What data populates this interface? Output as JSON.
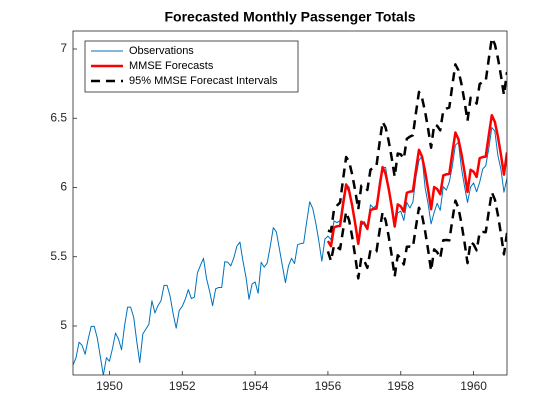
{
  "chart_data": {
    "type": "line",
    "title": "Forecasted  Monthly  Passenger  Totals",
    "x": [
      1949,
      1949.083,
      1949.167,
      1949.25,
      1949.333,
      1949.417,
      1949.5,
      1949.583,
      1949.667,
      1949.75,
      1949.833,
      1949.917,
      1950,
      1950.083,
      1950.167,
      1950.25,
      1950.333,
      1950.417,
      1950.5,
      1950.583,
      1950.667,
      1950.75,
      1950.833,
      1950.917,
      1951,
      1951.083,
      1951.167,
      1951.25,
      1951.333,
      1951.417,
      1951.5,
      1951.583,
      1951.667,
      1951.75,
      1951.833,
      1951.917,
      1952,
      1952.083,
      1952.167,
      1952.25,
      1952.333,
      1952.417,
      1952.5,
      1952.583,
      1952.667,
      1952.75,
      1952.833,
      1952.917,
      1953,
      1953.083,
      1953.167,
      1953.25,
      1953.333,
      1953.417,
      1953.5,
      1953.583,
      1953.667,
      1953.75,
      1953.833,
      1953.917,
      1954,
      1954.083,
      1954.167,
      1954.25,
      1954.333,
      1954.417,
      1954.5,
      1954.583,
      1954.667,
      1954.75,
      1954.833,
      1954.917,
      1955,
      1955.083,
      1955.167,
      1955.25,
      1955.333,
      1955.417,
      1955.5,
      1955.583,
      1955.667,
      1955.75,
      1955.833,
      1955.917,
      1956,
      1956.083,
      1956.167,
      1956.25,
      1956.333,
      1956.417,
      1956.5,
      1956.583,
      1956.667,
      1956.75,
      1956.833,
      1956.917,
      1957,
      1957.083,
      1957.167,
      1957.25,
      1957.333,
      1957.417,
      1957.5,
      1957.583,
      1957.667,
      1957.75,
      1957.833,
      1957.917,
      1958,
      1958.083,
      1958.167,
      1958.25,
      1958.333,
      1958.417,
      1958.5,
      1958.583,
      1958.667,
      1958.75,
      1958.833,
      1958.917,
      1959,
      1959.083,
      1959.167,
      1959.25,
      1959.333,
      1959.417,
      1959.5,
      1959.583,
      1959.667,
      1959.75,
      1959.833,
      1959.917,
      1960,
      1960.083,
      1960.167,
      1960.25,
      1960.333,
      1960.417,
      1960.5,
      1960.583,
      1960.667,
      1960.75,
      1960.833,
      1960.917
    ],
    "series": [
      {
        "name": "Observations",
        "color": "#0072bd",
        "width": 1,
        "dashed": false,
        "values": [
          4.718,
          4.771,
          4.883,
          4.86,
          4.796,
          4.905,
          4.997,
          4.997,
          4.913,
          4.779,
          4.644,
          4.771,
          4.745,
          4.836,
          4.949,
          4.905,
          4.828,
          5.004,
          5.136,
          5.136,
          5.063,
          4.89,
          4.736,
          4.942,
          4.977,
          5.011,
          5.182,
          5.094,
          5.147,
          5.182,
          5.293,
          5.293,
          5.215,
          5.088,
          4.984,
          5.112,
          5.142,
          5.193,
          5.263,
          5.198,
          5.209,
          5.384,
          5.438,
          5.489,
          5.342,
          5.252,
          5.147,
          5.268,
          5.278,
          5.278,
          5.464,
          5.46,
          5.434,
          5.493,
          5.576,
          5.606,
          5.468,
          5.352,
          5.193,
          5.303,
          5.318,
          5.236,
          5.46,
          5.425,
          5.455,
          5.576,
          5.71,
          5.68,
          5.557,
          5.434,
          5.313,
          5.434,
          5.489,
          5.451,
          5.587,
          5.595,
          5.598,
          5.753,
          5.897,
          5.849,
          5.743,
          5.613,
          5.468,
          5.628,
          5.649,
          5.624,
          5.759,
          5.746,
          5.762,
          5.924,
          6.023,
          6.004,
          5.872,
          5.724,
          5.602,
          5.724,
          5.753,
          5.707,
          5.875,
          5.852,
          5.872,
          6.045,
          6.142,
          6.146,
          6.001,
          5.849,
          5.72,
          5.817,
          5.829,
          5.762,
          5.892,
          5.852,
          5.894,
          6.075,
          6.196,
          6.225,
          6.001,
          5.883,
          5.737,
          5.82,
          5.886,
          5.835,
          6.006,
          5.981,
          6.04,
          6.157,
          6.306,
          6.326,
          6.138,
          6.009,
          5.892,
          6.004,
          6.033,
          5.969,
          6.038,
          6.133,
          6.157,
          6.282,
          6.433,
          6.407,
          6.23,
          6.133,
          5.966,
          6.068
        ]
      },
      {
        "name": "MMSE Forecasts",
        "color": "#ff0000",
        "width": 2.5,
        "dashed": false,
        "values": [
          null,
          null,
          null,
          null,
          null,
          null,
          null,
          null,
          null,
          null,
          null,
          null,
          null,
          null,
          null,
          null,
          null,
          null,
          null,
          null,
          null,
          null,
          null,
          null,
          null,
          null,
          null,
          null,
          null,
          null,
          null,
          null,
          null,
          null,
          null,
          null,
          null,
          null,
          null,
          null,
          null,
          null,
          null,
          null,
          null,
          null,
          null,
          null,
          null,
          null,
          null,
          null,
          null,
          null,
          null,
          null,
          null,
          null,
          null,
          null,
          null,
          null,
          null,
          null,
          null,
          null,
          null,
          null,
          null,
          null,
          null,
          null,
          null,
          null,
          null,
          null,
          null,
          null,
          null,
          null,
          null,
          null,
          null,
          null,
          5.614,
          5.576,
          5.712,
          5.72,
          5.723,
          5.878,
          6.022,
          5.974,
          5.868,
          5.738,
          5.593,
          5.753,
          5.739,
          5.701,
          5.837,
          5.845,
          5.848,
          6.003,
          6.147,
          6.099,
          5.993,
          5.863,
          5.718,
          5.878,
          5.864,
          5.826,
          5.962,
          5.97,
          5.973,
          6.128,
          6.272,
          6.224,
          6.118,
          5.988,
          5.843,
          6.003,
          5.989,
          5.951,
          6.087,
          6.095,
          6.098,
          6.253,
          6.397,
          6.349,
          6.243,
          6.113,
          5.968,
          6.128,
          6.114,
          6.076,
          6.212,
          6.22,
          6.223,
          6.378,
          6.522,
          6.474,
          6.368,
          6.238,
          6.093,
          6.253
        ]
      },
      {
        "name": "95% MMSE Forecast Intervals",
        "color": "#000000",
        "width": 2.5,
        "dashed": true,
        "values": [
          null,
          null,
          null,
          null,
          null,
          null,
          null,
          null,
          null,
          null,
          null,
          null,
          null,
          null,
          null,
          null,
          null,
          null,
          null,
          null,
          null,
          null,
          null,
          null,
          null,
          null,
          null,
          null,
          null,
          null,
          null,
          null,
          null,
          null,
          null,
          null,
          null,
          null,
          null,
          null,
          null,
          null,
          null,
          null,
          null,
          null,
          null,
          null,
          null,
          null,
          null,
          null,
          null,
          null,
          null,
          null,
          null,
          null,
          null,
          null,
          null,
          null,
          null,
          null,
          null,
          null,
          null,
          null,
          null,
          null,
          null,
          null,
          null,
          null,
          null,
          null,
          null,
          null,
          null,
          null,
          null,
          null,
          null,
          null,
          5.689,
          5.682,
          5.842,
          5.87,
          5.891,
          6.062,
          6.22,
          6.186,
          6.093,
          5.975,
          5.842,
          6.013,
          6.009,
          5.982,
          6.127,
          6.145,
          6.157,
          6.321,
          6.474,
          6.434,
          6.337,
          6.215,
          6.078,
          6.245,
          6.239,
          6.208,
          6.352,
          6.367,
          6.377,
          6.539,
          6.69,
          6.648,
          6.549,
          6.425,
          6.287,
          6.453,
          6.445,
          6.413,
          6.555,
          6.569,
          6.578,
          6.739,
          6.889,
          6.846,
          6.746,
          6.622,
          6.482,
          6.648,
          6.639,
          6.606,
          6.748,
          6.761,
          6.769,
          6.929,
          7.078,
          7.035,
          6.934,
          6.809,
          6.669,
          6.834
        ]
      },
      {
        "color": "#000000",
        "width": 2.5,
        "dashed": true,
        "values": [
          null,
          null,
          null,
          null,
          null,
          null,
          null,
          null,
          null,
          null,
          null,
          null,
          null,
          null,
          null,
          null,
          null,
          null,
          null,
          null,
          null,
          null,
          null,
          null,
          null,
          null,
          null,
          null,
          null,
          null,
          null,
          null,
          null,
          null,
          null,
          null,
          null,
          null,
          null,
          null,
          null,
          null,
          null,
          null,
          null,
          null,
          null,
          null,
          null,
          null,
          null,
          null,
          null,
          null,
          null,
          null,
          null,
          null,
          null,
          null,
          null,
          null,
          null,
          null,
          null,
          null,
          null,
          null,
          null,
          null,
          null,
          null,
          null,
          null,
          null,
          null,
          null,
          null,
          null,
          null,
          null,
          null,
          null,
          null,
          5.539,
          5.47,
          5.582,
          5.57,
          5.555,
          5.694,
          5.824,
          5.762,
          5.643,
          5.501,
          5.344,
          5.493,
          5.469,
          5.42,
          5.547,
          5.545,
          5.539,
          5.685,
          5.82,
          5.764,
          5.649,
          5.511,
          5.358,
          5.511,
          5.489,
          5.444,
          5.572,
          5.573,
          5.569,
          5.717,
          5.854,
          5.8,
          5.687,
          5.551,
          5.399,
          5.553,
          5.533,
          5.489,
          5.619,
          5.621,
          5.618,
          5.767,
          5.905,
          5.852,
          5.74,
          5.604,
          5.454,
          5.608,
          5.589,
          5.546,
          5.676,
          5.679,
          5.677,
          5.827,
          5.966,
          5.913,
          5.802,
          5.667,
          5.517,
          5.672
        ]
      }
    ],
    "xlim": [
      1949,
      1960.917
    ],
    "xticks": [
      1950,
      1952,
      1954,
      1956,
      1958,
      1960
    ],
    "ylim": [
      4.646,
      7.13
    ],
    "yticks": [
      5,
      5.5,
      6,
      6.5,
      7
    ],
    "grid": false,
    "legend": "northwest"
  }
}
